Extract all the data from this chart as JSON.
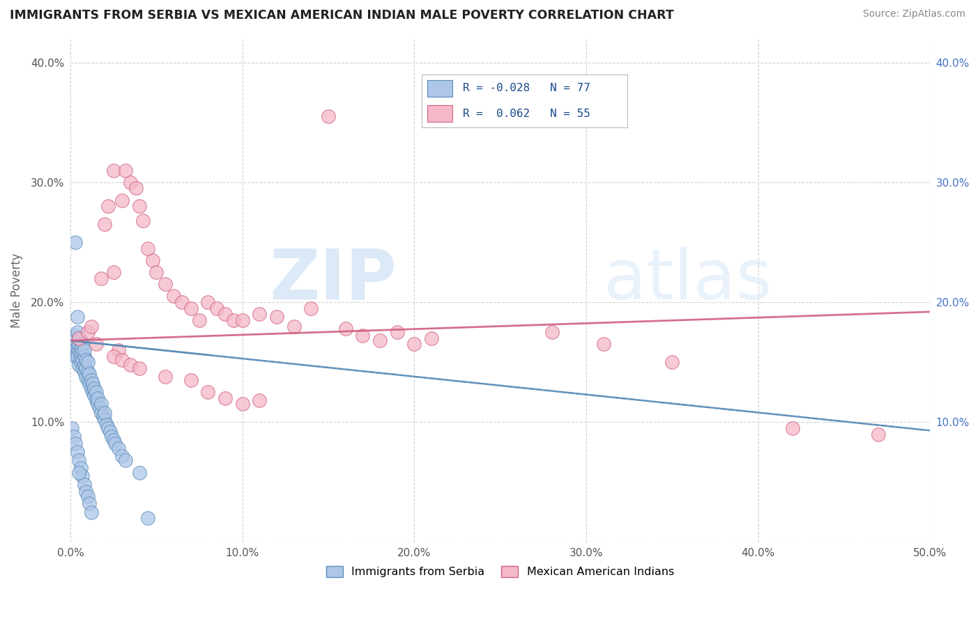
{
  "title": "IMMIGRANTS FROM SERBIA VS MEXICAN AMERICAN INDIAN MALE POVERTY CORRELATION CHART",
  "source": "Source: ZipAtlas.com",
  "ylabel": "Male Poverty",
  "xlim": [
    0.0,
    0.5
  ],
  "ylim": [
    0.0,
    0.42
  ],
  "xticks": [
    0.0,
    0.1,
    0.2,
    0.3,
    0.4,
    0.5
  ],
  "yticks": [
    0.0,
    0.1,
    0.2,
    0.3,
    0.4
  ],
  "xticklabels": [
    "0.0%",
    "10.0%",
    "20.0%",
    "30.0%",
    "40.0%",
    "50.0%"
  ],
  "yticklabels": [
    "",
    "10.0%",
    "20.0%",
    "30.0%",
    "40.0%"
  ],
  "series1_label": "Immigrants from Serbia",
  "series1_R": "-0.028",
  "series1_N": "77",
  "series1_color": "#aec6e8",
  "series1_edge_color": "#5b8db8",
  "series2_label": "Mexican American Indians",
  "series2_R": "0.062",
  "series2_N": "55",
  "series2_color": "#f4b8c8",
  "series2_edge_color": "#d06080",
  "series1_line_color": "#5b8db8",
  "series2_line_color": "#d06080",
  "watermark_zip": "ZIP",
  "watermark_atlas": "atlas",
  "background_color": "#ffffff",
  "grid_color": "#cccccc",
  "series1_x": [
    0.001,
    0.002,
    0.002,
    0.003,
    0.003,
    0.003,
    0.004,
    0.004,
    0.004,
    0.004,
    0.005,
    0.005,
    0.005,
    0.005,
    0.006,
    0.006,
    0.006,
    0.006,
    0.006,
    0.007,
    0.007,
    0.007,
    0.007,
    0.008,
    0.008,
    0.008,
    0.008,
    0.009,
    0.009,
    0.009,
    0.01,
    0.01,
    0.01,
    0.011,
    0.011,
    0.012,
    0.012,
    0.013,
    0.013,
    0.014,
    0.014,
    0.015,
    0.015,
    0.016,
    0.016,
    0.017,
    0.018,
    0.018,
    0.019,
    0.02,
    0.02,
    0.021,
    0.022,
    0.023,
    0.024,
    0.025,
    0.026,
    0.028,
    0.03,
    0.032,
    0.001,
    0.002,
    0.003,
    0.004,
    0.005,
    0.006,
    0.007,
    0.008,
    0.009,
    0.01,
    0.011,
    0.012,
    0.04,
    0.045,
    0.003,
    0.004,
    0.005
  ],
  "series1_y": [
    0.165,
    0.162,
    0.17,
    0.155,
    0.168,
    0.172,
    0.158,
    0.163,
    0.175,
    0.155,
    0.16,
    0.165,
    0.17,
    0.148,
    0.15,
    0.155,
    0.158,
    0.163,
    0.168,
    0.145,
    0.152,
    0.16,
    0.165,
    0.142,
    0.148,
    0.155,
    0.16,
    0.138,
    0.145,
    0.152,
    0.135,
    0.142,
    0.15,
    0.132,
    0.14,
    0.128,
    0.135,
    0.125,
    0.132,
    0.122,
    0.128,
    0.118,
    0.125,
    0.115,
    0.12,
    0.112,
    0.108,
    0.115,
    0.105,
    0.102,
    0.108,
    0.098,
    0.095,
    0.092,
    0.088,
    0.085,
    0.082,
    0.078,
    0.072,
    0.068,
    0.095,
    0.088,
    0.082,
    0.075,
    0.068,
    0.062,
    0.055,
    0.048,
    0.042,
    0.038,
    0.032,
    0.025,
    0.058,
    0.02,
    0.25,
    0.188,
    0.058
  ],
  "series2_x": [
    0.005,
    0.01,
    0.012,
    0.015,
    0.018,
    0.02,
    0.022,
    0.025,
    0.025,
    0.028,
    0.03,
    0.032,
    0.035,
    0.038,
    0.04,
    0.042,
    0.045,
    0.048,
    0.05,
    0.055,
    0.06,
    0.065,
    0.07,
    0.075,
    0.08,
    0.085,
    0.09,
    0.095,
    0.1,
    0.11,
    0.12,
    0.13,
    0.14,
    0.15,
    0.16,
    0.17,
    0.18,
    0.19,
    0.2,
    0.21,
    0.025,
    0.03,
    0.035,
    0.04,
    0.055,
    0.07,
    0.08,
    0.09,
    0.1,
    0.11,
    0.28,
    0.31,
    0.35,
    0.42,
    0.47
  ],
  "series2_y": [
    0.17,
    0.175,
    0.18,
    0.165,
    0.22,
    0.265,
    0.28,
    0.225,
    0.31,
    0.16,
    0.285,
    0.31,
    0.3,
    0.295,
    0.28,
    0.268,
    0.245,
    0.235,
    0.225,
    0.215,
    0.205,
    0.2,
    0.195,
    0.185,
    0.2,
    0.195,
    0.19,
    0.185,
    0.185,
    0.19,
    0.188,
    0.18,
    0.195,
    0.355,
    0.178,
    0.172,
    0.168,
    0.175,
    0.165,
    0.17,
    0.155,
    0.152,
    0.148,
    0.145,
    0.138,
    0.135,
    0.125,
    0.12,
    0.115,
    0.118,
    0.175,
    0.165,
    0.15,
    0.095,
    0.09
  ]
}
